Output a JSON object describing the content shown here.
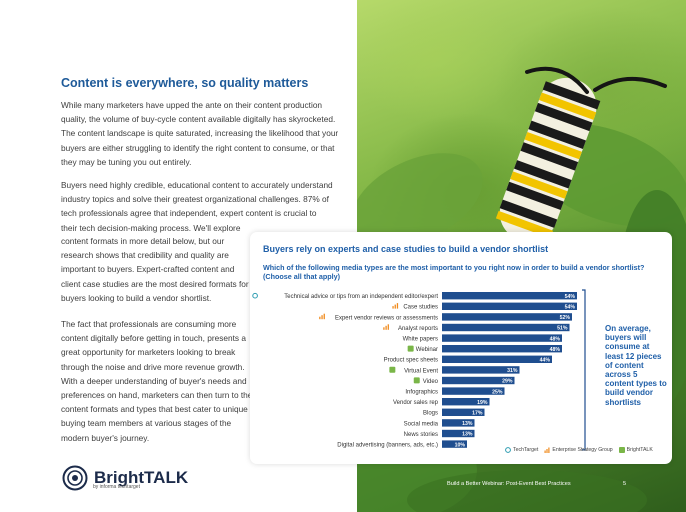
{
  "heading": "Content is everywhere, so quality matters",
  "paragraphs": {
    "p1": "While many marketers have upped the ante on their content production quality, the volume of buy-cycle content available digitally has skyrocketed. The content landscape is quite saturated, increasing the likelihood that your buyers are either struggling to identify the right content to consume, or that they may be tuning you out entirely.",
    "p2": "Buyers need highly credible, educational content to accurately understand industry topics and solve their greatest organizational challenges. 87% of tech professionals agree that independent, expert content is crucial to their tech decision-making process. We'll explore",
    "p2b": "content formats in more detail below, but our research shows that credibility and quality are important to buyers. Expert-crafted content and client case studies are the most desired formats for buyers looking to build a vendor shortlist.",
    "p3": "The fact that professionals are consuming more content digitally before getting in touch, presents a great opportunity for marketers looking to break through the noise and drive more revenue growth. With a deeper understanding of buyer's needs and preferences on hand, marketers can then turn to the content formats and types that best cater to unique buying team members at various stages of the modern buyer's journey."
  },
  "card": {
    "title": "Buyers rely on experts and case studies to build a vendor shortlist",
    "question": "Which of the following media types are the most important to you right now in order to build a vendor shortlist? (Choose all that apply)",
    "callout": "On average, buyers will consume at least 12 pieces of content across 5 content types to build vendor shortlists",
    "logos": [
      "TechTarget",
      "Enterprise Strategy Group",
      "BrightTALK"
    ]
  },
  "chart_data": {
    "type": "bar",
    "orientation": "horizontal",
    "categories": [
      "Technical advice or tips from an independent editor/expert",
      "Case studies",
      "Expert vendor reviews or assessments",
      "Analyst reports",
      "White papers",
      "Webinar",
      "Product spec sheets",
      "Virtual Event",
      "Video",
      "Infographics",
      "Vendor sales rep",
      "Blogs",
      "Social media",
      "News stories",
      "Digital advertising (banners, ads, etc.)"
    ],
    "values": [
      54,
      54,
      52,
      51,
      48,
      48,
      44,
      31,
      29,
      25,
      19,
      17,
      13,
      13,
      10
    ],
    "value_labels": [
      "54%",
      "54%",
      "52%",
      "51%",
      "48%",
      "48%",
      "44%",
      "31%",
      "29%",
      "25%",
      "19%",
      "17%",
      "13%",
      "13%",
      "10%"
    ],
    "category_icons": [
      "techtarget",
      "esg",
      "esg",
      "esg",
      "",
      "brighttalk",
      "",
      "brighttalk",
      "brighttalk",
      "",
      "",
      "",
      "",
      "",
      ""
    ],
    "bar_color": "#1f4e8f",
    "xlim": [
      0,
      56
    ],
    "title": "",
    "xlabel": "",
    "ylabel": ""
  },
  "colors": {
    "heading": "#1e5a99",
    "bar": "#1f4e8f",
    "esg_orange": "#f08a1c",
    "brighttalk_green": "#7ab648",
    "techtarget_teal": "#2a9bb0"
  },
  "brand": {
    "name": "BrightTALK",
    "sub": "by informa techtarget"
  },
  "footer": {
    "text": "Build a Better Webinar: Post-Event Best Practices",
    "page": "5"
  }
}
